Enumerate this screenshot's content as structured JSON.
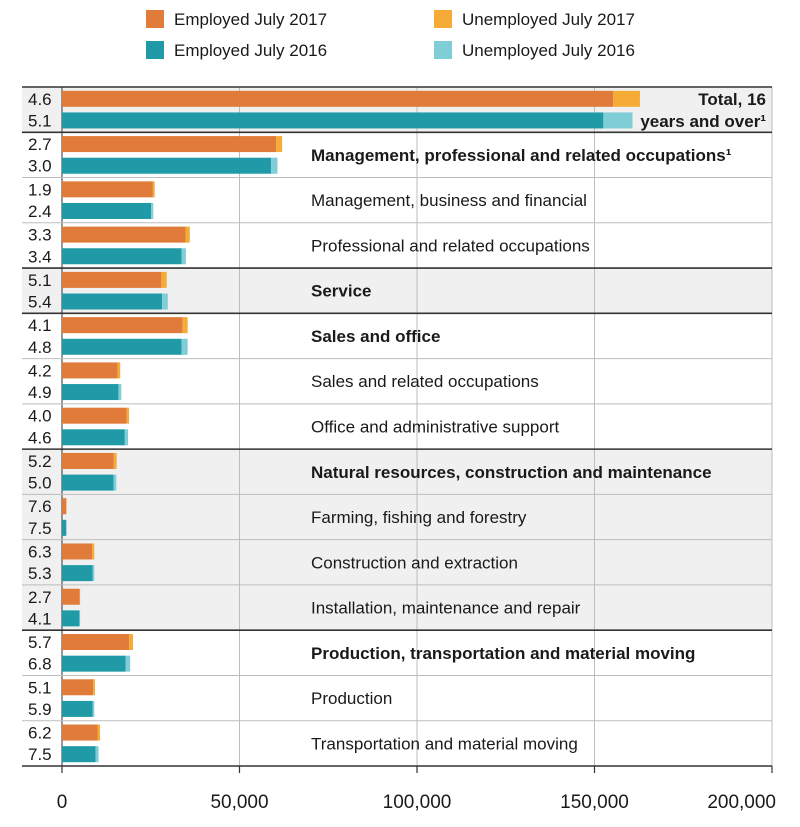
{
  "chart_data": {
    "type": "bar",
    "orientation": "horizontal",
    "stacked": true,
    "legend": {
      "placement": "top",
      "items": [
        {
          "label": "Employed July 2017",
          "color": "#e07b39"
        },
        {
          "label": "Unemployed July 2017",
          "color": "#f5ab35"
        },
        {
          "label": "Employed July 2016",
          "color": "#1f9aa6"
        },
        {
          "label": "Unemployed July 2016",
          "color": "#7fcdd6"
        }
      ]
    },
    "xlim": [
      0,
      200000
    ],
    "x_ticks": [
      "0",
      "50,000",
      "100,000",
      "150,000",
      "200,000"
    ],
    "x_tick_values": [
      0,
      50000,
      100000,
      150000,
      200000
    ],
    "rate_label_position": "left of bars",
    "groups": [
      {
        "label": "Total, 16 years and over¹",
        "label_lines": [
          "Total, 16",
          "years and over¹"
        ],
        "bold": true,
        "shaded": true,
        "separator_before": "thick",
        "rate_2017": "4.6",
        "rate_2016": "5.1",
        "employed_2017": 155300,
        "unemployed_2017": 7500,
        "employed_2016": 152500,
        "unemployed_2016": 8200
      },
      {
        "label": "Management, professional and related occupations¹",
        "bold": true,
        "shaded": false,
        "separator_before": "thick",
        "rate_2017": "2.7",
        "rate_2016": "3.0",
        "employed_2017": 60300,
        "unemployed_2017": 1700,
        "employed_2016": 58900,
        "unemployed_2016": 1800
      },
      {
        "label": "Management, business and financial",
        "bold": false,
        "shaded": false,
        "separator_before": "thin",
        "rate_2017": "1.9",
        "rate_2016": "2.4",
        "employed_2017": 25600,
        "unemployed_2017": 500,
        "employed_2016": 25100,
        "unemployed_2016": 600
      },
      {
        "label": "Professional and related occupations",
        "bold": false,
        "shaded": false,
        "separator_before": "thin",
        "rate_2017": "3.3",
        "rate_2016": "3.4",
        "employed_2017": 34800,
        "unemployed_2017": 1200,
        "employed_2016": 33700,
        "unemployed_2016": 1200
      },
      {
        "label": "Service",
        "bold": true,
        "shaded": true,
        "separator_before": "thick",
        "rate_2017": "5.1",
        "rate_2016": "5.4",
        "employed_2017": 28000,
        "unemployed_2017": 1500,
        "employed_2016": 28200,
        "unemployed_2016": 1600
      },
      {
        "label": "Sales and office",
        "bold": true,
        "shaded": false,
        "separator_before": "thick",
        "rate_2017": "4.1",
        "rate_2016": "4.8",
        "employed_2017": 34000,
        "unemployed_2017": 1400,
        "employed_2016": 33700,
        "unemployed_2016": 1700
      },
      {
        "label": "Sales and related occupations",
        "bold": false,
        "shaded": false,
        "separator_before": "thin",
        "rate_2017": "4.2",
        "rate_2016": "4.9",
        "employed_2017": 15700,
        "unemployed_2017": 700,
        "employed_2016": 15900,
        "unemployed_2016": 800
      },
      {
        "label": "Office and administrative support",
        "bold": false,
        "shaded": false,
        "separator_before": "thin",
        "rate_2017": "4.0",
        "rate_2016": "4.6",
        "employed_2017": 18200,
        "unemployed_2017": 700,
        "employed_2016": 17700,
        "unemployed_2016": 900
      },
      {
        "label": "Natural resources, construction and maintenance",
        "bold": true,
        "shaded": true,
        "separator_before": "thick",
        "rate_2017": "5.2",
        "rate_2016": "5.0",
        "employed_2017": 14600,
        "unemployed_2017": 800,
        "employed_2016": 14500,
        "unemployed_2016": 800
      },
      {
        "label": "Farming, fishing and forestry",
        "bold": false,
        "shaded": true,
        "separator_before": "thin",
        "rate_2017": "7.6",
        "rate_2016": "7.5",
        "employed_2017": 1200,
        "unemployed_2017": 100,
        "employed_2016": 1200,
        "unemployed_2016": 100
      },
      {
        "label": "Construction and extraction",
        "bold": false,
        "shaded": true,
        "separator_before": "thin",
        "rate_2017": "6.3",
        "rate_2016": "5.3",
        "employed_2017": 8500,
        "unemployed_2017": 600,
        "employed_2016": 8600,
        "unemployed_2016": 500
      },
      {
        "label": "Installation, maintenance and repair",
        "bold": false,
        "shaded": true,
        "separator_before": "thin",
        "rate_2017": "2.7",
        "rate_2016": "4.1",
        "employed_2017": 5000,
        "unemployed_2017": 100,
        "employed_2016": 4900,
        "unemployed_2016": 200
      },
      {
        "label": "Production, transportation and material moving",
        "bold": true,
        "shaded": false,
        "separator_before": "thick",
        "rate_2017": "5.7",
        "rate_2016": "6.8",
        "employed_2017": 18900,
        "unemployed_2017": 1100,
        "employed_2016": 17900,
        "unemployed_2016": 1300
      },
      {
        "label": "Production",
        "bold": false,
        "shaded": false,
        "separator_before": "thin",
        "rate_2017": "5.1",
        "rate_2016": "5.9",
        "employed_2017": 8800,
        "unemployed_2017": 500,
        "employed_2016": 8600,
        "unemployed_2016": 500
      },
      {
        "label": "Transportation and material moving",
        "bold": false,
        "shaded": false,
        "separator_before": "thin",
        "rate_2017": "6.2",
        "rate_2016": "7.5",
        "employed_2017": 10000,
        "unemployed_2017": 700,
        "employed_2016": 9500,
        "unemployed_2016": 800
      }
    ]
  }
}
